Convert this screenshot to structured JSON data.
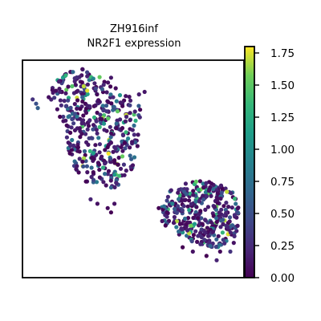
{
  "chart_data": {
    "type": "scatter",
    "title": "ZH916inf",
    "subtitle": "NR2F1 expression",
    "xlabel": "",
    "ylabel": "",
    "grid": false,
    "legend": "none",
    "x_ticks_visible": false,
    "y_ticks_visible": false,
    "colorbar": {
      "colormap": "viridis",
      "range": [
        0.0,
        1.8
      ],
      "ticks": [
        0.0,
        0.25,
        0.5,
        0.75,
        1.0,
        1.25,
        1.5,
        1.75
      ],
      "tick_labels": [
        "0.00",
        "0.25",
        "0.50",
        "0.75",
        "1.00",
        "1.25",
        "1.50",
        "1.75"
      ]
    },
    "clusters": [
      {
        "name": "upper",
        "outline": [
          [
            0.56,
            0.93
          ],
          [
            0.64,
            0.95
          ],
          [
            0.72,
            0.96
          ],
          [
            0.88,
            0.92
          ],
          [
            0.92,
            0.86
          ],
          [
            1.0,
            0.84
          ],
          [
            1.08,
            0.86
          ],
          [
            1.06,
            0.76
          ],
          [
            1.04,
            0.62
          ],
          [
            1.02,
            0.52
          ],
          [
            0.96,
            0.46
          ],
          [
            0.9,
            0.4
          ],
          [
            0.8,
            0.4
          ],
          [
            0.72,
            0.44
          ],
          [
            0.66,
            0.5
          ],
          [
            0.62,
            0.62
          ],
          [
            0.58,
            0.76
          ],
          [
            0.5,
            0.82
          ]
        ],
        "point_count": 420,
        "high_fraction": 0.12
      },
      {
        "name": "lower",
        "outline": [
          [
            1.22,
            0.4
          ],
          [
            1.34,
            0.44
          ],
          [
            1.46,
            0.45
          ],
          [
            1.56,
            0.43
          ],
          [
            1.62,
            0.36
          ],
          [
            1.64,
            0.26
          ],
          [
            1.6,
            0.18
          ],
          [
            1.52,
            0.14
          ],
          [
            1.42,
            0.14
          ],
          [
            1.32,
            0.18
          ],
          [
            1.22,
            0.22
          ],
          [
            1.16,
            0.3
          ]
        ],
        "point_count": 360,
        "high_fraction": 0.1
      }
    ],
    "stray_points": [
      [
        0.42,
        0.82,
        0.3
      ],
      [
        0.44,
        0.8,
        0.5
      ],
      [
        0.45,
        0.78,
        0.6
      ],
      [
        0.58,
        0.74,
        0.0
      ],
      [
        0.6,
        0.72,
        0.1
      ],
      [
        0.62,
        0.7,
        0.05
      ],
      [
        0.86,
        0.6,
        0.0
      ],
      [
        0.88,
        0.62,
        0.1
      ],
      [
        0.9,
        0.6,
        0.2
      ],
      [
        0.94,
        0.6,
        0.05
      ],
      [
        0.96,
        0.62,
        0.0
      ],
      [
        0.98,
        0.64,
        0.9
      ],
      [
        0.76,
        0.36,
        0.2
      ],
      [
        0.8,
        0.34,
        0.1
      ],
      [
        0.86,
        0.32,
        0.05
      ],
      [
        0.88,
        0.3,
        0.0
      ],
      [
        0.9,
        0.34,
        0.1
      ],
      [
        0.9,
        0.54,
        0.0
      ],
      [
        0.92,
        0.52,
        0.0
      ],
      [
        0.72,
        0.88,
        1.7
      ],
      [
        0.74,
        0.86,
        1.75
      ],
      [
        1.16,
        0.32,
        0.0
      ],
      [
        1.18,
        0.26,
        0.1
      ],
      [
        1.2,
        0.24,
        0.0
      ],
      [
        1.24,
        0.34,
        0.9
      ],
      [
        1.3,
        0.14,
        0.0
      ],
      [
        1.36,
        0.12,
        0.1
      ],
      [
        1.44,
        0.1,
        0.0
      ],
      [
        1.5,
        0.08,
        0.2
      ],
      [
        1.52,
        0.12,
        0.05
      ],
      [
        1.58,
        0.12,
        0.3
      ],
      [
        1.6,
        0.16,
        0.1
      ]
    ],
    "xlim": [
      0.36,
      1.66
    ],
    "ylim": [
      0.0,
      1.0
    ]
  }
}
